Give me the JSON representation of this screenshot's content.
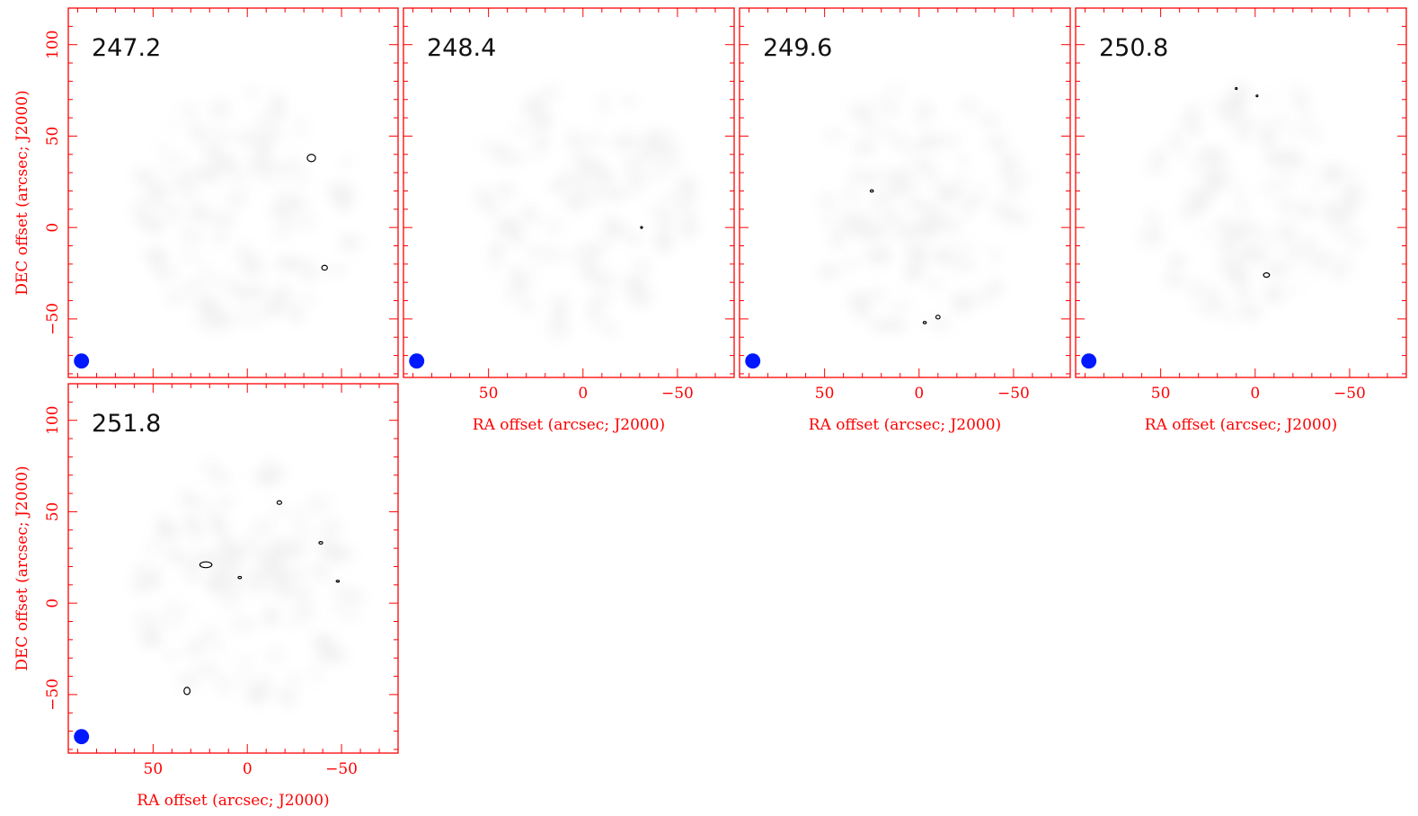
{
  "chart_data": {
    "type": "contour",
    "colors": {
      "axis": "#ff0000",
      "contour": "#000000",
      "beam": "#0018ff",
      "noise": "#b0b0b0"
    },
    "xlabel": "RA offset (arcsec; J2000)",
    "ylabel": "DEC offset (arcsec; J2000)",
    "xlim": [
      95,
      -80
    ],
    "ylim": [
      -82,
      120
    ],
    "x_ticks": [
      {
        "value": 50,
        "label": "50"
      },
      {
        "value": 0,
        "label": "0"
      },
      {
        "value": -50,
        "label": "−50"
      }
    ],
    "y_ticks": [
      {
        "value": 100,
        "label": "100"
      },
      {
        "value": 50,
        "label": "50"
      },
      {
        "value": 0,
        "label": "0"
      },
      {
        "value": -50,
        "label": "−50"
      }
    ],
    "beam": {
      "x": 88,
      "y": -73,
      "major": 7,
      "minor": 5.5
    },
    "panels": [
      {
        "label": "247.2",
        "contours": [
          {
            "x": -34,
            "y": 38,
            "rx": 2.2,
            "ry": 2.0
          },
          {
            "x": -41,
            "y": -22,
            "rx": 1.5,
            "ry": 1.3
          }
        ]
      },
      {
        "label": "248.4",
        "contours": [
          {
            "x": -31,
            "y": 0,
            "rx": 0.4,
            "ry": 0.4
          }
        ]
      },
      {
        "label": "249.6",
        "contours": [
          {
            "x": 25,
            "y": 20,
            "rx": 0.8,
            "ry": 0.6
          },
          {
            "x": -10,
            "y": -49,
            "rx": 1.1,
            "ry": 1.0
          },
          {
            "x": -3,
            "y": -52,
            "rx": 0.8,
            "ry": 0.6
          }
        ]
      },
      {
        "label": "250.8",
        "contours": [
          {
            "x": -6,
            "y": -26,
            "rx": 1.6,
            "ry": 1.2
          },
          {
            "x": 10,
            "y": 76,
            "rx": 0.4,
            "ry": 0.4
          },
          {
            "x": -1,
            "y": 72,
            "rx": 0.4,
            "ry": 0.4
          }
        ]
      },
      {
        "label": "251.8",
        "contours": [
          {
            "x": 22,
            "y": 21,
            "rx": 3.2,
            "ry": 1.6
          },
          {
            "x": 32,
            "y": -48,
            "rx": 1.6,
            "ry": 2.0
          },
          {
            "x": -17,
            "y": 55,
            "rx": 1.2,
            "ry": 1.0
          },
          {
            "x": -39,
            "y": 33,
            "rx": 1.0,
            "ry": 0.7
          },
          {
            "x": 4,
            "y": 14,
            "rx": 0.9,
            "ry": 0.6
          },
          {
            "x": -48,
            "y": 12,
            "rx": 0.8,
            "ry": 0.5
          }
        ]
      }
    ],
    "grid": false
  }
}
